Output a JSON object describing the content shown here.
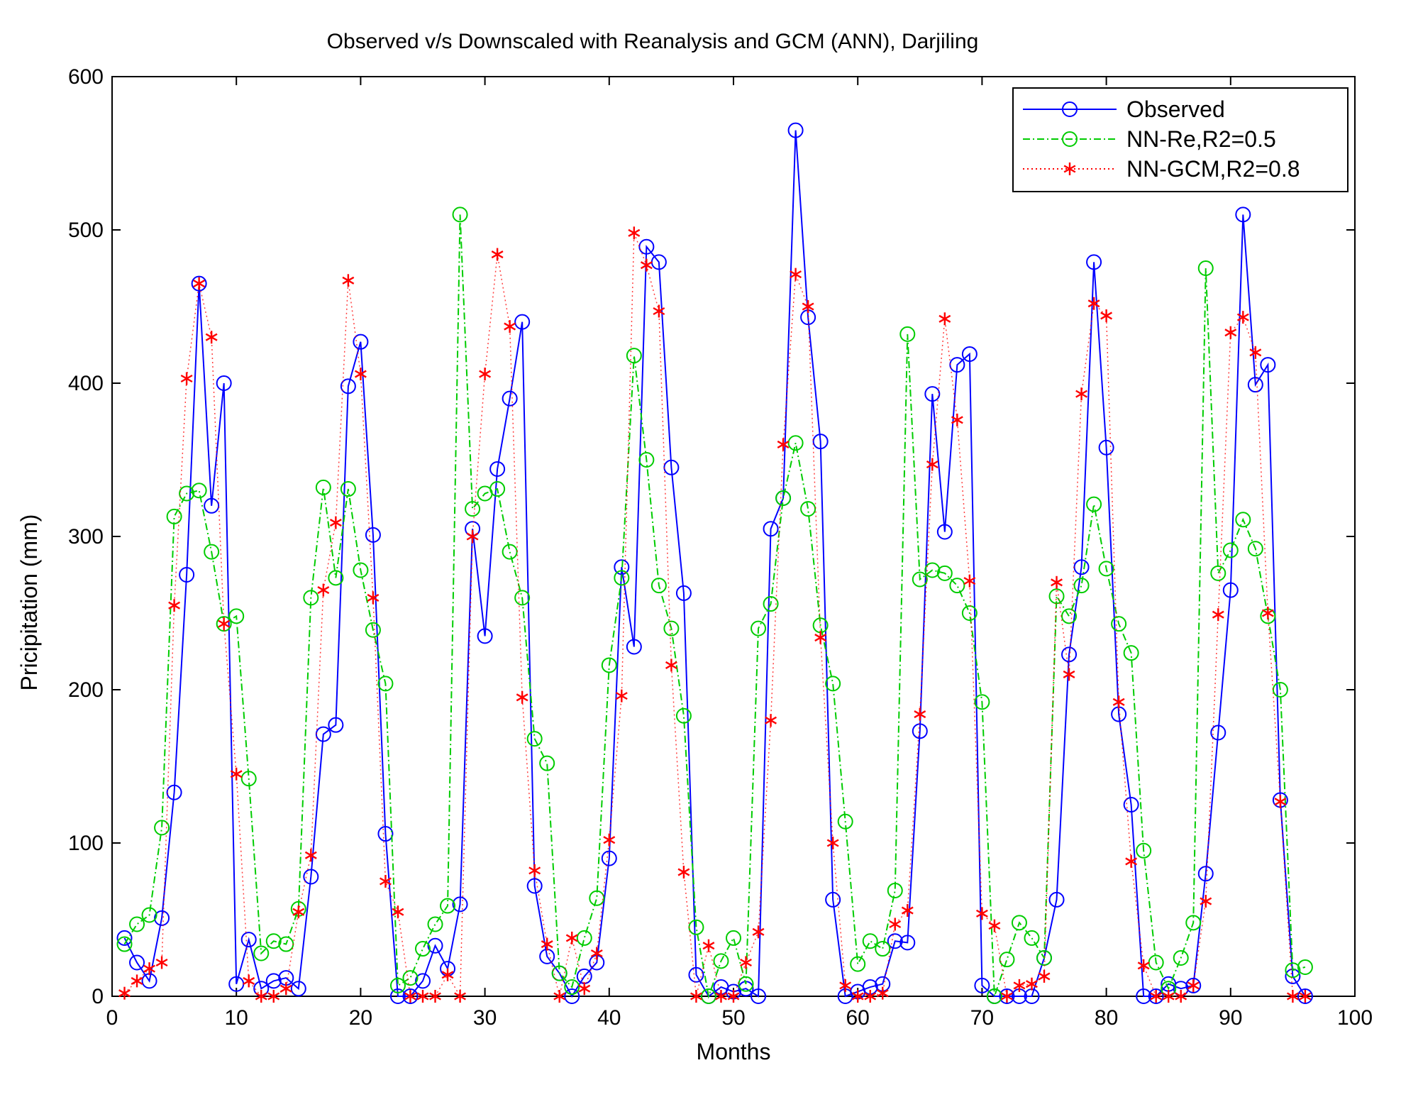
{
  "chart_data": {
    "type": "line",
    "title": "Observed v/s Downscaled with Reanalysis and GCM (ANN), Darjiling",
    "xlabel": "Months",
    "ylabel": "Pricipitation (mm)",
    "xlim": [
      0,
      100
    ],
    "ylim": [
      0,
      600
    ],
    "xticks": [
      0,
      10,
      20,
      30,
      40,
      50,
      60,
      70,
      80,
      90,
      100
    ],
    "yticks": [
      0,
      100,
      200,
      300,
      400,
      500,
      600
    ],
    "grid": false,
    "legend_position": "top-right",
    "x": [
      1,
      2,
      3,
      4,
      5,
      6,
      7,
      8,
      9,
      10,
      11,
      12,
      13,
      14,
      15,
      16,
      17,
      18,
      19,
      20,
      21,
      22,
      23,
      24,
      25,
      26,
      27,
      28,
      29,
      30,
      31,
      32,
      33,
      34,
      35,
      36,
      37,
      38,
      39,
      40,
      41,
      42,
      43,
      44,
      45,
      46,
      47,
      48,
      49,
      50,
      51,
      52,
      53,
      54,
      55,
      56,
      57,
      58,
      59,
      60,
      61,
      62,
      63,
      64,
      65,
      66,
      67,
      68,
      69,
      70,
      71,
      72,
      73,
      74,
      75,
      76,
      77,
      78,
      79,
      80,
      81,
      82,
      83,
      84,
      85,
      86,
      87,
      88,
      89,
      90,
      91,
      92,
      93,
      94,
      95,
      96
    ],
    "series": [
      {
        "name": "Observed",
        "color": "#0000ff",
        "line_style": "solid",
        "marker": "circle",
        "values": [
          38,
          22,
          10,
          51,
          133,
          275,
          465,
          320,
          400,
          8,
          37,
          5,
          10,
          12,
          5,
          78,
          171,
          177,
          398,
          427,
          301,
          106,
          0,
          0,
          10,
          33,
          18,
          60,
          305,
          235,
          344,
          390,
          440,
          72,
          26,
          15,
          0,
          13,
          22,
          90,
          280,
          228,
          489,
          479,
          345,
          263,
          14,
          0,
          6,
          3,
          5,
          0,
          305,
          325,
          565,
          443,
          362,
          63,
          0,
          3,
          6,
          8,
          36,
          35,
          173,
          393,
          303,
          412,
          419,
          7,
          0,
          0,
          0,
          0,
          25,
          63,
          223,
          280,
          479,
          358,
          184,
          125,
          0,
          0,
          8,
          5,
          7,
          80,
          172,
          265,
          510,
          399,
          412,
          128,
          13,
          0
        ]
      },
      {
        "name": "NN-Re,R2=0.5",
        "color": "#00cc00",
        "line_style": "dashdot",
        "marker": "circle",
        "values": [
          34,
          47,
          53,
          110,
          313,
          328,
          330,
          290,
          243,
          248,
          142,
          28,
          36,
          34,
          57,
          260,
          332,
          273,
          331,
          278,
          239,
          204,
          7,
          12,
          31,
          47,
          59,
          510,
          318,
          328,
          331,
          290,
          260,
          168,
          152,
          15,
          6,
          38,
          64,
          216,
          273,
          418,
          350,
          268,
          240,
          183,
          45,
          0,
          23,
          38,
          8,
          240,
          256,
          325,
          361,
          318,
          242,
          204,
          114,
          21,
          36,
          31,
          69,
          432,
          272,
          278,
          276,
          268,
          250,
          192,
          0,
          24,
          48,
          38,
          25,
          261,
          248,
          268,
          321,
          279,
          243,
          224,
          95,
          22,
          5,
          25,
          48,
          475,
          276,
          291,
          311,
          292,
          248,
          200,
          17,
          19
        ]
      },
      {
        "name": "NN-GCM,R2=0.8",
        "color": "#ff0000",
        "line_style": "dotted",
        "marker": "star",
        "values": [
          2,
          10,
          18,
          22,
          255,
          403,
          465,
          430,
          243,
          145,
          10,
          0,
          0,
          5,
          55,
          92,
          265,
          309,
          467,
          406,
          260,
          75,
          55,
          0,
          0,
          0,
          14,
          0,
          300,
          406,
          484,
          437,
          195,
          82,
          34,
          0,
          38,
          5,
          28,
          102,
          196,
          498,
          477,
          447,
          216,
          81,
          0,
          33,
          0,
          0,
          22,
          42,
          180,
          360,
          471,
          450,
          234,
          100,
          7,
          0,
          0,
          2,
          47,
          56,
          184,
          347,
          442,
          376,
          271,
          54,
          46,
          0,
          7,
          8,
          13,
          270,
          210,
          393,
          452,
          444,
          192,
          88,
          20,
          0,
          0,
          0,
          7,
          62,
          249,
          433,
          443,
          420,
          250,
          127,
          0,
          0
        ]
      }
    ]
  }
}
